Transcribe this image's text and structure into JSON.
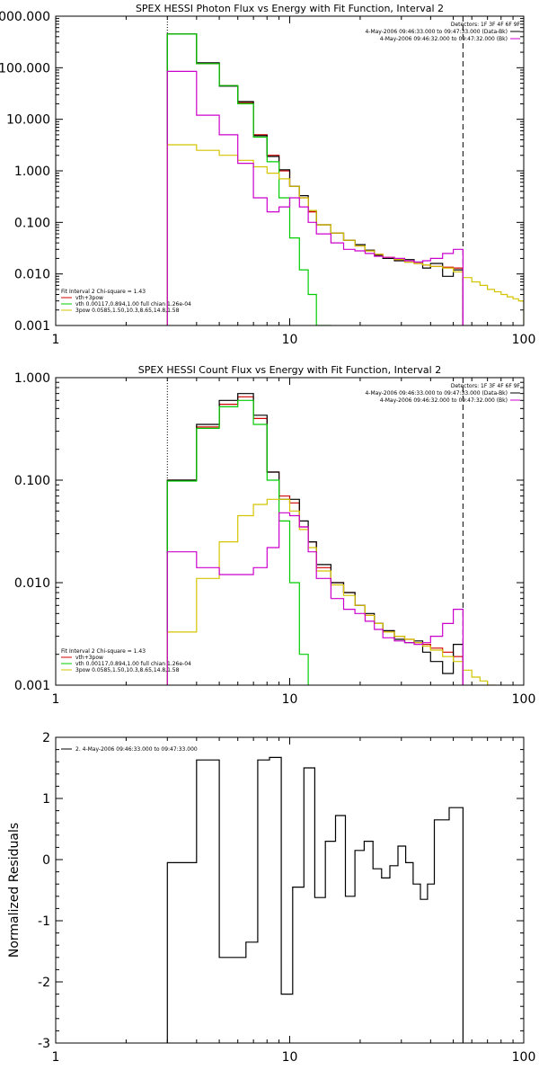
{
  "chart_data": [
    {
      "type": "line",
      "subtype": "step",
      "title": "SPEX HESSI Photon Flux vs Energy with Fit Function, Interval 2",
      "xscale": "log",
      "yscale": "log",
      "xlim": [
        1,
        100
      ],
      "ylim": [
        0.001,
        1000
      ],
      "x_tick_labels": [
        {
          "v": 1,
          "label": "1"
        },
        {
          "v": 10,
          "label": "10"
        },
        {
          "v": 100,
          "label": "100"
        }
      ],
      "y_tick_labels": [
        {
          "v": 0.001,
          "label": "0.001"
        },
        {
          "v": 0.01,
          "label": "0.010"
        },
        {
          "v": 0.1,
          "label": "0.100"
        },
        {
          "v": 1,
          "label": "1.000"
        },
        {
          "v": 10,
          "label": "10.000"
        },
        {
          "v": 100,
          "label": "100.000"
        },
        {
          "v": 1000,
          "label": "1000.000"
        }
      ],
      "header": [
        "Detectors: 1F 3F 4F 6F 9F",
        "4-May-2006 09:46:33.000 to 09:47:33.000 (Data-Bk)",
        "4-May-2006 09:46:32.000 to 09:47:32.000 (Bk)"
      ],
      "header_colors": [
        "#000000",
        "#000000",
        "#cc00cc"
      ],
      "legend": [
        {
          "label": "Fit Interval 2   Chi-square = 1.43",
          "color": "#000000",
          "line": false
        },
        {
          "label": "vth+3pow",
          "color": "#d00000",
          "line": true
        },
        {
          "label": "vth 0.00117,0.894,1.00  full chian 1.26e-04",
          "color": "#00cc00",
          "line": true
        },
        {
          "label": "3pow 0.0585,1.50,10.3,8.65,14.8,1.58",
          "color": "#d4c400",
          "line": true
        }
      ],
      "vlines": [
        {
          "x": 3,
          "style": "dotted",
          "color": "#000000"
        },
        {
          "x": 55,
          "style": "dashed",
          "color": "#000000"
        }
      ],
      "series": [
        {
          "name": "vth+3pow",
          "color": "#d00000",
          "edges": [
            3,
            4,
            5,
            6,
            7,
            8,
            9,
            10,
            11,
            12,
            13,
            15,
            17,
            19,
            21,
            23,
            25,
            28,
            31,
            34,
            37,
            40,
            45,
            50,
            55
          ],
          "values": [
            450,
            120,
            45,
            21,
            5,
            2,
            1,
            0.5,
            0.3,
            0.16,
            0.09,
            0.062,
            0.045,
            0.035,
            0.028,
            0.024,
            0.021,
            0.019,
            0.017,
            0.016,
            0.015,
            0.014,
            0.0135,
            0.013
          ]
        },
        {
          "name": "data-bk",
          "color": "#000000",
          "edges": [
            3,
            4,
            5,
            6,
            7,
            8,
            9,
            10,
            11,
            12,
            13,
            15,
            17,
            19,
            21,
            23,
            25,
            28,
            31,
            34,
            37,
            40,
            45,
            50,
            55
          ],
          "values": [
            450,
            125,
            44,
            22,
            4.8,
            1.9,
            1.05,
            0.5,
            0.33,
            0.17,
            0.09,
            0.062,
            0.045,
            0.037,
            0.029,
            0.023,
            0.02,
            0.018,
            0.019,
            0.017,
            0.013,
            0.016,
            0.009,
            0.012
          ]
        },
        {
          "name": "vth",
          "color": "#00cc00",
          "edges": [
            3,
            4,
            5,
            6,
            7,
            8,
            9,
            10,
            11,
            12,
            13,
            15
          ],
          "values": [
            450,
            120,
            45,
            20,
            4.5,
            1.5,
            0.3,
            0.05,
            0.012,
            0.004,
            0.001
          ]
        },
        {
          "name": "3pow",
          "color": "#d4c400",
          "edges": [
            3,
            4,
            5,
            6,
            7,
            8,
            9,
            10,
            11,
            12,
            13,
            15,
            17,
            19,
            21,
            23,
            25,
            28,
            31,
            34,
            37,
            40,
            45,
            50,
            55,
            60,
            65,
            70,
            75,
            80,
            85,
            90,
            95,
            100
          ],
          "values": [
            3.2,
            2.5,
            2.0,
            1.6,
            1.2,
            0.9,
            0.7,
            0.5,
            0.3,
            0.17,
            0.09,
            0.062,
            0.045,
            0.035,
            0.028,
            0.024,
            0.021,
            0.019,
            0.017,
            0.016,
            0.015,
            0.014,
            0.013,
            0.011,
            0.0085,
            0.007,
            0.006,
            0.005,
            0.0045,
            0.004,
            0.0036,
            0.0033,
            0.003
          ]
        },
        {
          "name": "Bk",
          "color": "#cc00cc",
          "edges": [
            3,
            4,
            5,
            6,
            7,
            8,
            9,
            10,
            11,
            12,
            13,
            15,
            17,
            19,
            21,
            23,
            25,
            28,
            31,
            34,
            37,
            40,
            45,
            50,
            55
          ],
          "values": [
            85,
            12,
            5,
            1.4,
            0.3,
            0.16,
            0.2,
            0.3,
            0.2,
            0.1,
            0.06,
            0.04,
            0.03,
            0.028,
            0.025,
            0.022,
            0.021,
            0.02,
            0.018,
            0.017,
            0.018,
            0.02,
            0.025,
            0.03
          ]
        }
      ]
    },
    {
      "type": "line",
      "subtype": "step",
      "title": "SPEX HESSI Count Flux vs Energy with Fit Function, Interval 2",
      "xscale": "log",
      "yscale": "log",
      "xlim": [
        1,
        100
      ],
      "ylim": [
        0.001,
        1
      ],
      "x_tick_labels": [
        {
          "v": 1,
          "label": "1"
        },
        {
          "v": 10,
          "label": "10"
        },
        {
          "v": 100,
          "label": "100"
        }
      ],
      "y_tick_labels": [
        {
          "v": 0.001,
          "label": "0.001"
        },
        {
          "v": 0.01,
          "label": "0.010"
        },
        {
          "v": 0.1,
          "label": "0.100"
        },
        {
          "v": 1,
          "label": "1.000"
        }
      ],
      "header": [
        "Detectors: 1F 3F 4F 6F 9F",
        "4-May-2006 09:46:33.000 to 09:47:33.000 (Data-Bk)",
        "4-May-2006 09:46:32.000 to 09:47:32.000 (Bk)"
      ],
      "header_colors": [
        "#000000",
        "#000000",
        "#cc00cc"
      ],
      "legend": [
        {
          "label": "Fit Interval 2   Chi-square = 1.43",
          "color": "#000000",
          "line": false
        },
        {
          "label": "vth+3pow",
          "color": "#d00000",
          "line": true
        },
        {
          "label": "vth 0.00117,0.894,1.00  full chian 1.26e-04",
          "color": "#00cc00",
          "line": true
        },
        {
          "label": "3pow 0.0585,1.50,10.3,8.65,14.8,1.58",
          "color": "#d4c400",
          "line": true
        }
      ],
      "vlines": [
        {
          "x": 3,
          "style": "dotted",
          "color": "#000000"
        },
        {
          "x": 55,
          "style": "dashed",
          "color": "#000000"
        }
      ],
      "series": [
        {
          "name": "vth+3pow",
          "color": "#d00000",
          "edges": [
            3,
            4,
            5,
            6,
            7,
            8,
            9,
            10,
            11,
            12,
            13,
            15,
            17,
            19,
            21,
            23,
            25,
            28,
            31,
            34,
            37,
            40,
            45,
            50,
            55
          ],
          "values": [
            0.1,
            0.33,
            0.55,
            0.65,
            0.4,
            0.12,
            0.07,
            0.06,
            0.035,
            0.025,
            0.014,
            0.01,
            0.008,
            0.006,
            0.0048,
            0.004,
            0.0033,
            0.003,
            0.0028,
            0.0026,
            0.0025,
            0.0023,
            0.0021,
            0.0019
          ]
        },
        {
          "name": "data-bk",
          "color": "#000000",
          "edges": [
            3,
            4,
            5,
            6,
            7,
            8,
            9,
            10,
            11,
            12,
            13,
            15,
            17,
            19,
            21,
            23,
            25,
            28,
            31,
            34,
            37,
            40,
            45,
            50,
            55
          ],
          "values": [
            0.1,
            0.35,
            0.6,
            0.7,
            0.43,
            0.12,
            0.065,
            0.065,
            0.04,
            0.025,
            0.015,
            0.01,
            0.008,
            0.006,
            0.005,
            0.004,
            0.0034,
            0.0028,
            0.0026,
            0.0027,
            0.0021,
            0.0017,
            0.0013,
            0.0025
          ]
        },
        {
          "name": "vth",
          "color": "#00cc00",
          "edges": [
            3,
            4,
            5,
            6,
            7,
            8,
            9,
            10,
            11,
            12
          ],
          "values": [
            0.098,
            0.32,
            0.52,
            0.6,
            0.35,
            0.1,
            0.04,
            0.01,
            0.002
          ]
        },
        {
          "name": "3pow",
          "color": "#d4c400",
          "edges": [
            3,
            4,
            5,
            6,
            7,
            8,
            9,
            10,
            11,
            12,
            13,
            15,
            17,
            19,
            21,
            23,
            25,
            28,
            31,
            34,
            37,
            40,
            45,
            50,
            55,
            60,
            65,
            70,
            75
          ],
          "values": [
            0.0033,
            0.011,
            0.025,
            0.045,
            0.058,
            0.065,
            0.065,
            0.05,
            0.033,
            0.022,
            0.013,
            0.0095,
            0.0075,
            0.006,
            0.0048,
            0.004,
            0.0033,
            0.003,
            0.0028,
            0.0026,
            0.0024,
            0.0022,
            0.0019,
            0.0017,
            0.0014,
            0.0012,
            0.0011,
            0.001
          ]
        },
        {
          "name": "Bk",
          "color": "#cc00cc",
          "edges": [
            3,
            4,
            5,
            6,
            7,
            8,
            9,
            10,
            11,
            12,
            13,
            15,
            17,
            19,
            21,
            23,
            25,
            28,
            31,
            34,
            37,
            40,
            45,
            50,
            55
          ],
          "values": [
            0.02,
            0.014,
            0.012,
            0.012,
            0.014,
            0.022,
            0.048,
            0.045,
            0.035,
            0.02,
            0.011,
            0.007,
            0.0055,
            0.005,
            0.0042,
            0.0035,
            0.0029,
            0.0027,
            0.0026,
            0.0025,
            0.0026,
            0.003,
            0.004,
            0.0055
          ]
        }
      ]
    },
    {
      "type": "line",
      "subtype": "step",
      "title": "",
      "ylabel": "Normalized Residuals",
      "xscale": "log",
      "yscale": "linear",
      "xlim": [
        1,
        100
      ],
      "ylim": [
        -3,
        2
      ],
      "x_tick_labels": [
        {
          "v": 1,
          "label": "1"
        },
        {
          "v": 10,
          "label": "10"
        },
        {
          "v": 100,
          "label": "100"
        }
      ],
      "y_tick_labels": [
        {
          "v": -3,
          "label": "-3"
        },
        {
          "v": -2,
          "label": "-2"
        },
        {
          "v": -1,
          "label": "-1"
        },
        {
          "v": 0,
          "label": "0"
        },
        {
          "v": 1,
          "label": "1"
        },
        {
          "v": 2,
          "label": "2"
        }
      ],
      "legend": [
        {
          "label": "2.  4-May-2006 09:46:33.000 to 09:47:33.000",
          "color": "#000000",
          "line": true
        }
      ],
      "series": [
        {
          "name": "residuals",
          "color": "#000000",
          "edges": [
            3,
            3.5,
            4,
            4.5,
            5,
            5.7,
            6.5,
            7.3,
            8.2,
            9.2,
            10.3,
            11.5,
            12.8,
            14.2,
            15.7,
            17.3,
            19,
            20.8,
            22.7,
            24.7,
            26.8,
            29,
            31.3,
            33.7,
            36.2,
            38.8,
            41.5,
            44.5,
            48,
            51.5,
            55
          ],
          "values": [
            -0.05,
            -0.05,
            1.63,
            1.63,
            -1.6,
            -1.6,
            -1.35,
            1.63,
            1.67,
            -2.2,
            -0.45,
            1.5,
            -0.62,
            0.3,
            0.72,
            -0.6,
            0.15,
            0.3,
            -0.15,
            -0.3,
            -0.1,
            0.22,
            -0.05,
            -0.4,
            -0.65,
            -0.4,
            0.65,
            0.65,
            0.85,
            0.85
          ],
          "start_from": -3,
          "end_at": -3
        }
      ]
    }
  ]
}
